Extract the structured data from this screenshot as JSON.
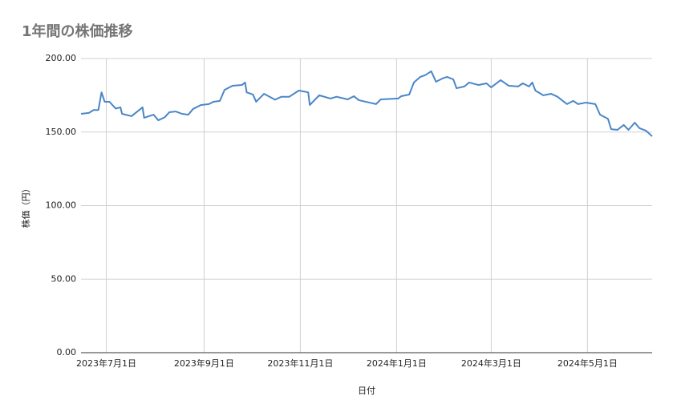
{
  "chart_data": {
    "type": "line",
    "title": "1年間の株価推移",
    "xlabel": "日付",
    "ylabel": "株価（円）",
    "color": "#4a86c8",
    "grid": true,
    "x": [
      "2023-06-15",
      "2023-06-20",
      "2023-06-23",
      "2023-06-26",
      "2023-06-28",
      "2023-06-30",
      "2023-07-03",
      "2023-07-07",
      "2023-07-10",
      "2023-07-11",
      "2023-07-17",
      "2023-07-24",
      "2023-07-25",
      "2023-07-31",
      "2023-08-03",
      "2023-08-07",
      "2023-08-10",
      "2023-08-14",
      "2023-08-18",
      "2023-08-22",
      "2023-08-25",
      "2023-08-30",
      "2023-09-04",
      "2023-09-07",
      "2023-09-11",
      "2023-09-14",
      "2023-09-19",
      "2023-09-25",
      "2023-09-27",
      "2023-09-28",
      "2023-10-02",
      "2023-10-04",
      "2023-10-09",
      "2023-10-16",
      "2023-10-20",
      "2023-10-25",
      "2023-10-31",
      "2023-11-06",
      "2023-11-07",
      "2023-11-13",
      "2023-11-20",
      "2023-11-24",
      "2023-12-01",
      "2023-12-05",
      "2023-12-08",
      "2023-12-15",
      "2023-12-19",
      "2023-12-22",
      "2024-01-02",
      "2024-01-04",
      "2024-01-09",
      "2024-01-12",
      "2024-01-16",
      "2024-01-19",
      "2024-01-23",
      "2024-01-26",
      "2024-01-30",
      "2024-02-02",
      "2024-02-06",
      "2024-02-08",
      "2024-02-13",
      "2024-02-16",
      "2024-02-22",
      "2024-02-27",
      "2024-03-01",
      "2024-03-07",
      "2024-03-12",
      "2024-03-18",
      "2024-03-21",
      "2024-03-25",
      "2024-03-27",
      "2024-03-29",
      "2024-04-03",
      "2024-04-08",
      "2024-04-12",
      "2024-04-18",
      "2024-04-22",
      "2024-04-25",
      "2024-04-30",
      "2024-05-06",
      "2024-05-09",
      "2024-05-14",
      "2024-05-16",
      "2024-05-20",
      "2024-05-24",
      "2024-05-27",
      "2024-05-31",
      "2024-06-03",
      "2024-06-07",
      "2024-06-11"
    ],
    "values": [
      162.4,
      163,
      165,
      165,
      177,
      170.6,
      170.6,
      166,
      166.8,
      162.4,
      160.8,
      166.8,
      159.7,
      161.8,
      158,
      160,
      163.5,
      164,
      162.4,
      161.8,
      165.7,
      168.4,
      169,
      170.6,
      171.2,
      178.7,
      181.5,
      182,
      183.7,
      177,
      175.5,
      170.6,
      176,
      172,
      174,
      174,
      178.2,
      177,
      168.4,
      175,
      172.8,
      174,
      172.2,
      174.4,
      171.7,
      170,
      169,
      172.2,
      172.8,
      174.4,
      175.5,
      183.7,
      187.5,
      188.6,
      191.3,
      184.2,
      186.4,
      187.5,
      185.8,
      179.8,
      181,
      183.7,
      182,
      183.1,
      180.4,
      185.3,
      181.5,
      181,
      183.1,
      181,
      183.7,
      178.2,
      175,
      176,
      174,
      169,
      171.2,
      169,
      170,
      169,
      161.8,
      159,
      152,
      151.5,
      154.8,
      151.5,
      156.4,
      152.6,
      151,
      147.1
    ],
    "xlim": [
      "2023-06-15",
      "2024-06-11"
    ],
    "xticks": [
      {
        "value": "2023-07-01",
        "label": "2023年7月1日"
      },
      {
        "value": "2023-09-01",
        "label": "2023年9月1日"
      },
      {
        "value": "2023-11-01",
        "label": "2023年11月1日"
      },
      {
        "value": "2024-01-01",
        "label": "2024年1月1日"
      },
      {
        "value": "2024-03-01",
        "label": "2024年3月1日"
      },
      {
        "value": "2024-05-01",
        "label": "2024年5月1日"
      }
    ],
    "ylim": [
      0,
      200
    ],
    "yticks": [
      {
        "value": 0,
        "label": "0.00"
      },
      {
        "value": 50,
        "label": "50.00"
      },
      {
        "value": 100,
        "label": "100.00"
      },
      {
        "value": 150,
        "label": "150.00"
      },
      {
        "value": 200,
        "label": "200.00"
      }
    ]
  }
}
